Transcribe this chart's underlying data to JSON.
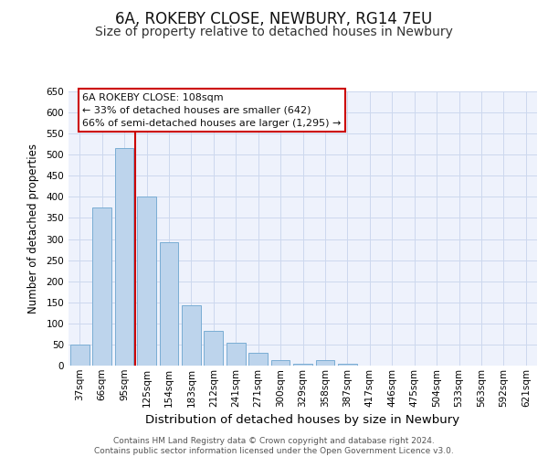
{
  "title": "6A, ROKEBY CLOSE, NEWBURY, RG14 7EU",
  "subtitle": "Size of property relative to detached houses in Newbury",
  "xlabel": "Distribution of detached houses by size in Newbury",
  "ylabel": "Number of detached properties",
  "categories": [
    "37sqm",
    "66sqm",
    "95sqm",
    "125sqm",
    "154sqm",
    "183sqm",
    "212sqm",
    "241sqm",
    "271sqm",
    "300sqm",
    "329sqm",
    "358sqm",
    "387sqm",
    "417sqm",
    "446sqm",
    "475sqm",
    "504sqm",
    "533sqm",
    "563sqm",
    "592sqm",
    "621sqm"
  ],
  "values": [
    50,
    375,
    515,
    400,
    293,
    143,
    82,
    55,
    30,
    12,
    5,
    12,
    5,
    0,
    0,
    0,
    0,
    0,
    0,
    0,
    0
  ],
  "bar_color": "#bdd4ec",
  "bar_edge_color": "#7aadd4",
  "bar_alpha": 1.0,
  "vline_pos": 2.5,
  "vline_color": "#cc0000",
  "annotation_title": "6A ROKEBY CLOSE: 108sqm",
  "annotation_line1": "← 33% of detached houses are smaller (642)",
  "annotation_line2": "66% of semi-detached houses are larger (1,295) →",
  "annotation_box_facecolor": "#ffffff",
  "annotation_box_edgecolor": "#cc0000",
  "ylim": [
    0,
    650
  ],
  "yticks": [
    0,
    50,
    100,
    150,
    200,
    250,
    300,
    350,
    400,
    450,
    500,
    550,
    600,
    650
  ],
  "grid_color": "#ccd8ee",
  "bg_color": "#eef2fc",
  "footer_line1": "Contains HM Land Registry data © Crown copyright and database right 2024.",
  "footer_line2": "Contains public sector information licensed under the Open Government Licence v3.0.",
  "title_fontsize": 12,
  "subtitle_fontsize": 10,
  "xlabel_fontsize": 9.5,
  "ylabel_fontsize": 8.5,
  "tick_fontsize": 7.5,
  "footer_fontsize": 6.5,
  "annotation_fontsize": 8
}
